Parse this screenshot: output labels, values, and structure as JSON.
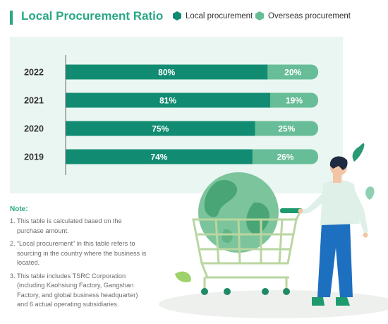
{
  "colors": {
    "accent": "#2aa883",
    "local": "#118c72",
    "overseas": "#66bd97",
    "panel": "#eaf6f1",
    "label": "#333333"
  },
  "title": "Local Procurement Ratio",
  "legend": [
    {
      "label": "Local procurement",
      "icon": "hexagon-dark-icon"
    },
    {
      "label": "Overseas procurement",
      "icon": "hexagon-light-icon"
    }
  ],
  "chart_data": {
    "type": "bar",
    "orientation": "horizontal",
    "stacked": true,
    "categories": [
      "2022",
      "2021",
      "2020",
      "2019"
    ],
    "series": [
      {
        "name": "Local procurement",
        "values": [
          80,
          81,
          75,
          74
        ],
        "labels": [
          "80%",
          "81%",
          "75%",
          "74%"
        ]
      },
      {
        "name": "Overseas procurement",
        "values": [
          20,
          19,
          25,
          26
        ],
        "labels": [
          "20%",
          "19%",
          "25%",
          "26%"
        ]
      }
    ],
    "xlim": [
      0,
      100
    ],
    "grid": false,
    "legend_position": "top-right"
  },
  "notes": {
    "heading": "Note:",
    "items": [
      {
        "num": "1.",
        "text": "This table is calculated based on the purchase amount."
      },
      {
        "num": "2.",
        "text": "“Local procurement” in this table refers to sourcing in the country where the business is located."
      },
      {
        "num": "3.",
        "text": "This table includes TSRC Corporation (including Kaohsiung Factory, Gangshan Factory, and global business headquarter) and 6 actual operating subsidiaries."
      }
    ]
  },
  "illustration": {
    "icons": [
      "shopping-cart-icon",
      "globe-icon",
      "person-icon",
      "leaf-icon"
    ]
  }
}
